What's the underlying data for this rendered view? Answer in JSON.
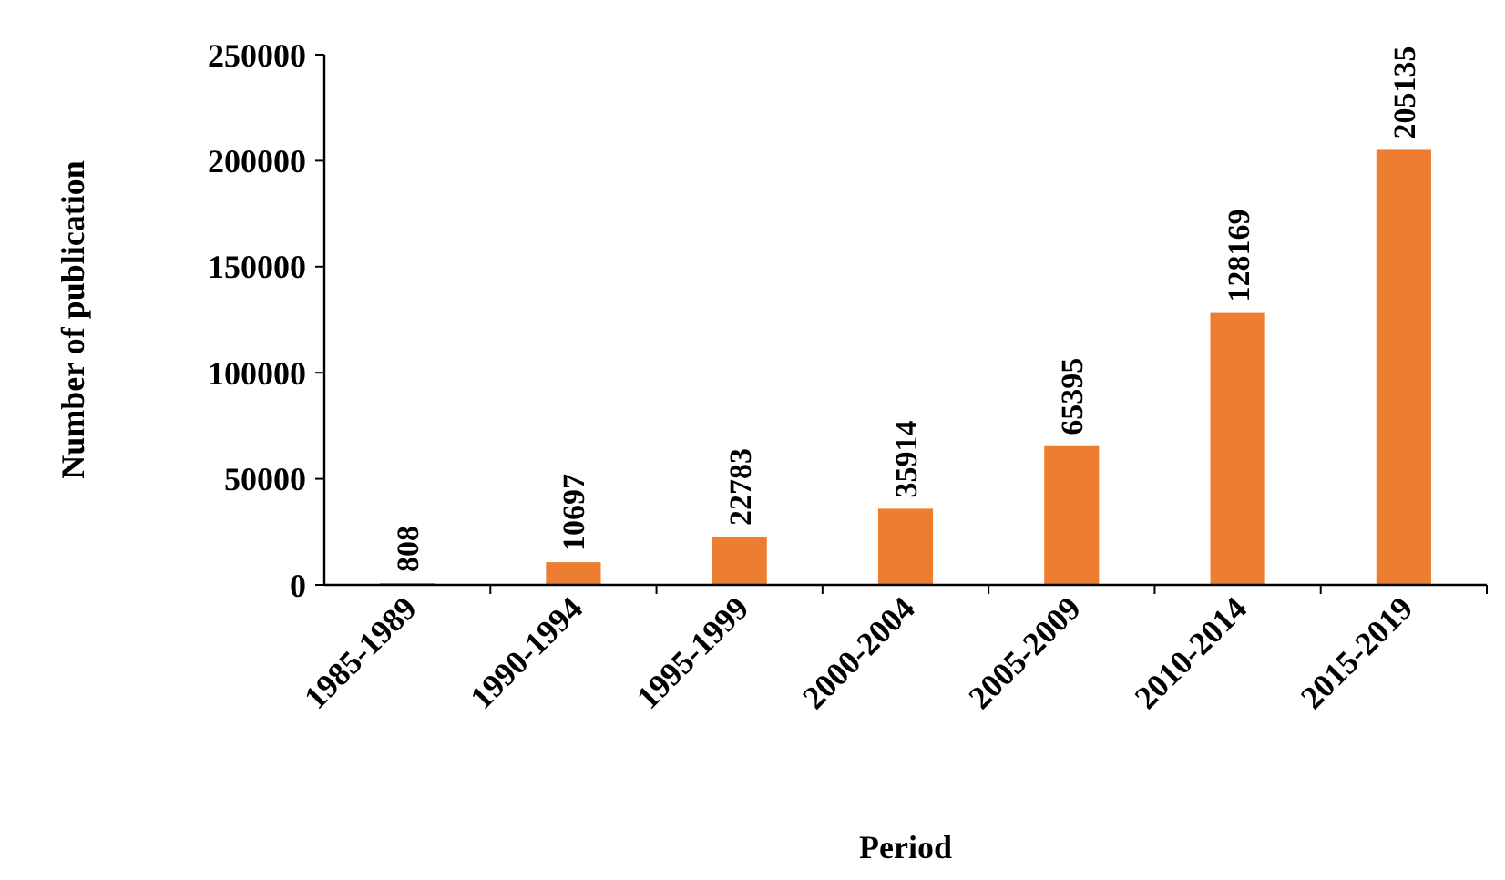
{
  "chart_data": {
    "type": "bar",
    "xlabel": "Period",
    "ylabel": "Number of publication",
    "categories": [
      "1985-1989",
      "1990-1994",
      "1995-1999",
      "2000-2004",
      "2005-2009",
      "2010-2014",
      "2015-2019"
    ],
    "values": [
      808,
      10697,
      22783,
      35914,
      65395,
      128169,
      205135
    ],
    "color": "#ed7d31",
    "ylim": [
      0,
      250000
    ],
    "yticks": [
      0,
      50000,
      100000,
      150000,
      200000,
      250000
    ],
    "data_labels": true,
    "grid": false
  }
}
